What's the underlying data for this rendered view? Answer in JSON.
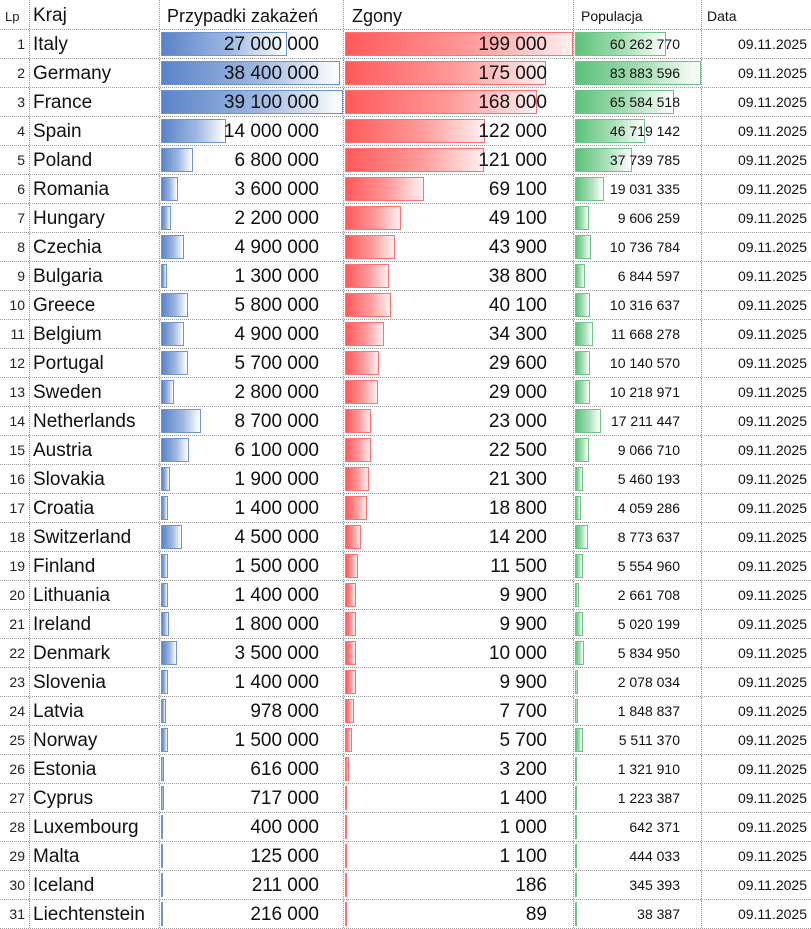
{
  "header": {
    "lp": "Lp",
    "kraj": "Kraj",
    "cases": "Przypadki zakażeń",
    "deaths": "Zgony",
    "population": "Populacja",
    "date": "Data"
  },
  "colors": {
    "cases_bar": "#5a83c8",
    "deaths_bar": "#ff5a5a",
    "population_bar": "#5cc17a"
  },
  "rows": [
    {
      "lp": "1",
      "country": "Italy",
      "cases": "27 000 000",
      "cases_n": 27000000,
      "deaths": "199 000",
      "deaths_n": 199000,
      "population": "60 262 770",
      "population_n": 60262770,
      "date": "09.11.2025"
    },
    {
      "lp": "2",
      "country": "Germany",
      "cases": "38 400 000",
      "cases_n": 38400000,
      "deaths": "175 000",
      "deaths_n": 175000,
      "population": "83 883 596",
      "population_n": 83883596,
      "date": "09.11.2025"
    },
    {
      "lp": "3",
      "country": "France",
      "cases": "39 100 000",
      "cases_n": 39100000,
      "deaths": "168 000",
      "deaths_n": 168000,
      "population": "65 584 518",
      "population_n": 65584518,
      "date": "09.11.2025"
    },
    {
      "lp": "4",
      "country": "Spain",
      "cases": "14 000 000",
      "cases_n": 14000000,
      "deaths": "122 000",
      "deaths_n": 122000,
      "population": "46 719 142",
      "population_n": 46719142,
      "date": "09.11.2025"
    },
    {
      "lp": "5",
      "country": "Poland",
      "cases": "6 800 000",
      "cases_n": 6800000,
      "deaths": "121 000",
      "deaths_n": 121000,
      "population": "37 739 785",
      "population_n": 37739785,
      "date": "09.11.2025"
    },
    {
      "lp": "6",
      "country": "Romania",
      "cases": "3 600 000",
      "cases_n": 3600000,
      "deaths": "69 100",
      "deaths_n": 69100,
      "population": "19 031 335",
      "population_n": 19031335,
      "date": "09.11.2025"
    },
    {
      "lp": "7",
      "country": "Hungary",
      "cases": "2 200 000",
      "cases_n": 2200000,
      "deaths": "49 100",
      "deaths_n": 49100,
      "population": "9 606 259",
      "population_n": 9606259,
      "date": "09.11.2025"
    },
    {
      "lp": "8",
      "country": "Czechia",
      "cases": "4 900 000",
      "cases_n": 4900000,
      "deaths": "43 900",
      "deaths_n": 43900,
      "population": "10 736 784",
      "population_n": 10736784,
      "date": "09.11.2025"
    },
    {
      "lp": "9",
      "country": "Bulgaria",
      "cases": "1 300 000",
      "cases_n": 1300000,
      "deaths": "38 800",
      "deaths_n": 38800,
      "population": "6 844 597",
      "population_n": 6844597,
      "date": "09.11.2025"
    },
    {
      "lp": "10",
      "country": "Greece",
      "cases": "5 800 000",
      "cases_n": 5800000,
      "deaths": "40 100",
      "deaths_n": 40100,
      "population": "10 316 637",
      "population_n": 10316637,
      "date": "09.11.2025"
    },
    {
      "lp": "11",
      "country": "Belgium",
      "cases": "4 900 000",
      "cases_n": 4900000,
      "deaths": "34 300",
      "deaths_n": 34300,
      "population": "11 668 278",
      "population_n": 11668278,
      "date": "09.11.2025"
    },
    {
      "lp": "12",
      "country": "Portugal",
      "cases": "5 700 000",
      "cases_n": 5700000,
      "deaths": "29 600",
      "deaths_n": 29600,
      "population": "10 140 570",
      "population_n": 10140570,
      "date": "09.11.2025"
    },
    {
      "lp": "13",
      "country": "Sweden",
      "cases": "2 800 000",
      "cases_n": 2800000,
      "deaths": "29 000",
      "deaths_n": 29000,
      "population": "10 218 971",
      "population_n": 10218971,
      "date": "09.11.2025"
    },
    {
      "lp": "14",
      "country": "Netherlands",
      "cases": "8 700 000",
      "cases_n": 8700000,
      "deaths": "23 000",
      "deaths_n": 23000,
      "population": "17 211 447",
      "population_n": 17211447,
      "date": "09.11.2025"
    },
    {
      "lp": "15",
      "country": "Austria",
      "cases": "6 100 000",
      "cases_n": 6100000,
      "deaths": "22 500",
      "deaths_n": 22500,
      "population": "9 066 710",
      "population_n": 9066710,
      "date": "09.11.2025"
    },
    {
      "lp": "16",
      "country": "Slovakia",
      "cases": "1 900 000",
      "cases_n": 1900000,
      "deaths": "21 300",
      "deaths_n": 21300,
      "population": "5 460 193",
      "population_n": 5460193,
      "date": "09.11.2025"
    },
    {
      "lp": "17",
      "country": "Croatia",
      "cases": "1 400 000",
      "cases_n": 1400000,
      "deaths": "18 800",
      "deaths_n": 18800,
      "population": "4 059 286",
      "population_n": 4059286,
      "date": "09.11.2025"
    },
    {
      "lp": "18",
      "country": "Switzerland",
      "cases": "4 500 000",
      "cases_n": 4500000,
      "deaths": "14 200",
      "deaths_n": 14200,
      "population": "8 773 637",
      "population_n": 8773637,
      "date": "09.11.2025"
    },
    {
      "lp": "19",
      "country": "Finland",
      "cases": "1 500 000",
      "cases_n": 1500000,
      "deaths": "11 500",
      "deaths_n": 11500,
      "population": "5 554 960",
      "population_n": 5554960,
      "date": "09.11.2025"
    },
    {
      "lp": "20",
      "country": "Lithuania",
      "cases": "1 400 000",
      "cases_n": 1400000,
      "deaths": "9 900",
      "deaths_n": 9900,
      "population": "2 661 708",
      "population_n": 2661708,
      "date": "09.11.2025"
    },
    {
      "lp": "21",
      "country": "Ireland",
      "cases": "1 800 000",
      "cases_n": 1800000,
      "deaths": "9 900",
      "deaths_n": 9900,
      "population": "5 020 199",
      "population_n": 5020199,
      "date": "09.11.2025"
    },
    {
      "lp": "22",
      "country": "Denmark",
      "cases": "3 500 000",
      "cases_n": 3500000,
      "deaths": "10 000",
      "deaths_n": 10000,
      "population": "5 834 950",
      "population_n": 5834950,
      "date": "09.11.2025"
    },
    {
      "lp": "23",
      "country": "Slovenia",
      "cases": "1 400 000",
      "cases_n": 1400000,
      "deaths": "9 900",
      "deaths_n": 9900,
      "population": "2 078 034",
      "population_n": 2078034,
      "date": "09.11.2025"
    },
    {
      "lp": "24",
      "country": "Latvia",
      "cases": "978 000",
      "cases_n": 978000,
      "deaths": "7 700",
      "deaths_n": 7700,
      "population": "1 848 837",
      "population_n": 1848837,
      "date": "09.11.2025"
    },
    {
      "lp": "25",
      "country": "Norway",
      "cases": "1 500 000",
      "cases_n": 1500000,
      "deaths": "5 700",
      "deaths_n": 5700,
      "population": "5 511 370",
      "population_n": 5511370,
      "date": "09.11.2025"
    },
    {
      "lp": "26",
      "country": "Estonia",
      "cases": "616 000",
      "cases_n": 616000,
      "deaths": "3 200",
      "deaths_n": 3200,
      "population": "1 321 910",
      "population_n": 1321910,
      "date": "09.11.2025"
    },
    {
      "lp": "27",
      "country": "Cyprus",
      "cases": "717 000",
      "cases_n": 717000,
      "deaths": "1 400",
      "deaths_n": 1400,
      "population": "1 223 387",
      "population_n": 1223387,
      "date": "09.11.2025"
    },
    {
      "lp": "28",
      "country": "Luxembourg",
      "cases": "400 000",
      "cases_n": 400000,
      "deaths": "1 000",
      "deaths_n": 1000,
      "population": "642 371",
      "population_n": 642371,
      "date": "09.11.2025"
    },
    {
      "lp": "29",
      "country": "Malta",
      "cases": "125 000",
      "cases_n": 125000,
      "deaths": "1 100",
      "deaths_n": 1100,
      "population": "444 033",
      "population_n": 444033,
      "date": "09.11.2025"
    },
    {
      "lp": "30",
      "country": "Iceland",
      "cases": "211 000",
      "cases_n": 211000,
      "deaths": "186",
      "deaths_n": 186,
      "population": "345 393",
      "population_n": 345393,
      "date": "09.11.2025"
    },
    {
      "lp": "31",
      "country": "Liechtenstein",
      "cases": "216 000",
      "cases_n": 216000,
      "deaths": "89",
      "deaths_n": 89,
      "population": "38 387",
      "population_n": 38387,
      "date": "09.11.2025"
    }
  ]
}
